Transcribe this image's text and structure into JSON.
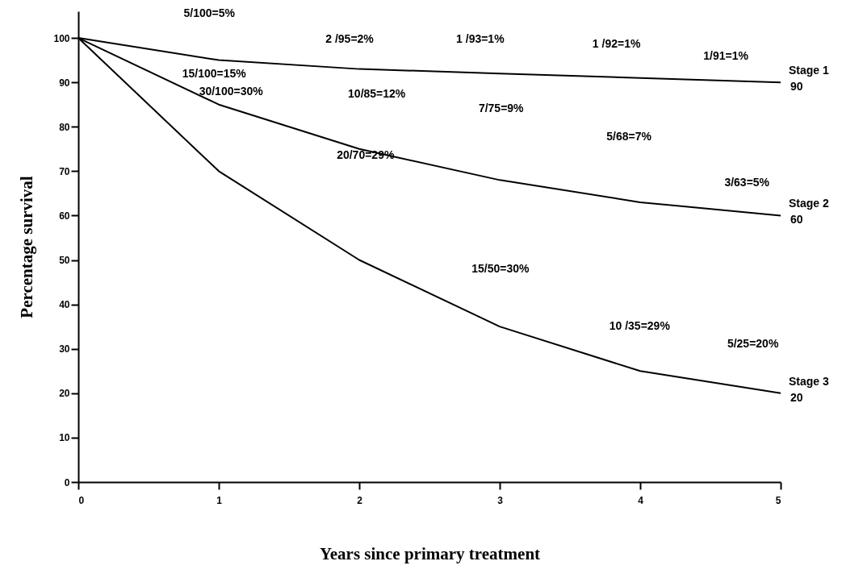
{
  "chart_data": {
    "type": "line",
    "xlabel": "Years since primary treatment",
    "ylabel": "Percentage survival",
    "x": [
      0,
      1,
      2,
      3,
      4,
      5
    ],
    "xlim": [
      0,
      5
    ],
    "xticks": [
      0,
      1,
      2,
      3,
      4,
      5
    ],
    "ylim": [
      0,
      106
    ],
    "yticks": [
      0,
      10,
      20,
      30,
      40,
      50,
      60,
      70,
      80,
      90,
      100
    ],
    "series": [
      {
        "name": "Stage 1",
        "color": "#000000",
        "values": [
          100,
          95,
          93,
          92,
          91,
          90
        ],
        "value_labels": [
          null,
          null,
          null,
          null,
          null,
          "90"
        ]
      },
      {
        "name": "Stage 2",
        "color": "#000000",
        "values": [
          100,
          85,
          75,
          68,
          63,
          60
        ],
        "value_labels": [
          null,
          null,
          null,
          null,
          null,
          "60"
        ]
      },
      {
        "name": "Stage 3",
        "color": "#000000",
        "values": [
          100,
          70,
          50,
          35,
          25,
          20
        ],
        "value_labels": [
          null,
          null,
          null,
          null,
          null,
          "20"
        ]
      }
    ],
    "annotations": [
      "5/100=5%",
      "15/100=15%",
      "30/100=30%",
      "2 /95=2%",
      "10/85=12%",
      "20/70=29%",
      "1 /93=1%",
      "7/75=9%",
      "15/50=30%",
      "1 /92=1%",
      "5/68=7%",
      "10 /35=29%",
      "1/91=1%",
      "3/63=5%",
      "5/25=20%"
    ]
  }
}
